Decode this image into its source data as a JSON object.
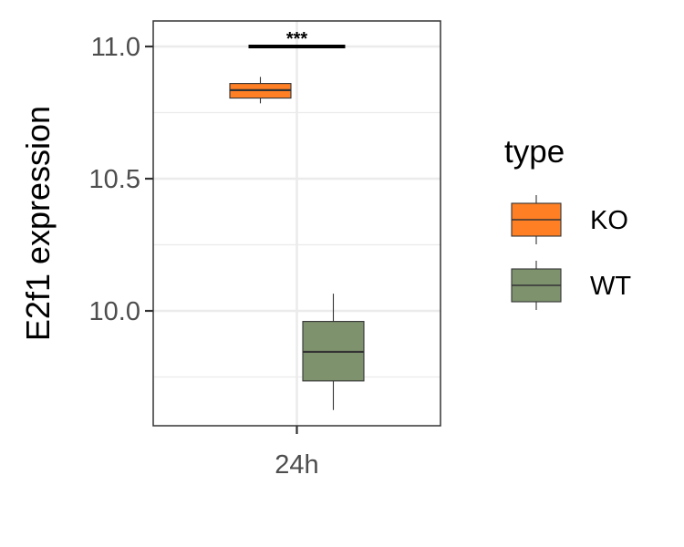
{
  "chart_data": {
    "type": "box",
    "title": "",
    "xlabel": "",
    "ylabel": "E2f1 expression",
    "categories": [
      "24h"
    ],
    "y_ticks": [
      "10.0",
      "10.5",
      "11.0"
    ],
    "ylim": [
      9.57,
      11.1
    ],
    "grid": true,
    "legend": {
      "title": "type",
      "position": "right"
    },
    "series": [
      {
        "name": "KO",
        "color": "#FF7F24",
        "min": 10.785,
        "q1": 10.805,
        "median": 10.835,
        "q3": 10.86,
        "max": 10.885
      },
      {
        "name": "WT",
        "color": "#7E926E",
        "min": 9.625,
        "q1": 9.735,
        "median": 9.845,
        "q3": 9.96,
        "max": 10.065
      }
    ],
    "annotations": [
      {
        "text": "***",
        "y": 11.0,
        "between": [
          "KO",
          "WT"
        ]
      }
    ]
  }
}
